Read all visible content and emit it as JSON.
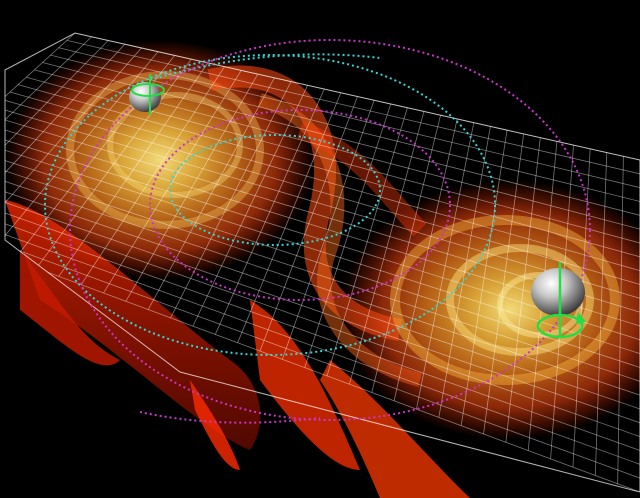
{
  "scene": {
    "background": "#000000",
    "grid_color": "#ffffff",
    "wave_colors": [
      "#ff2a00",
      "#ff5a10",
      "#ff8a20",
      "#ffc040",
      "#ffe680"
    ],
    "black_holes": [
      {
        "name": "black-hole-left",
        "surface": "#c8c8c8",
        "spin_color": "#22dd44"
      },
      {
        "name": "black-hole-right",
        "surface": "#c8c8c8",
        "spin_color": "#22dd44"
      }
    ],
    "orbit_colors": {
      "primary": "#33d6d6",
      "secondary": "#cc33cc"
    }
  }
}
